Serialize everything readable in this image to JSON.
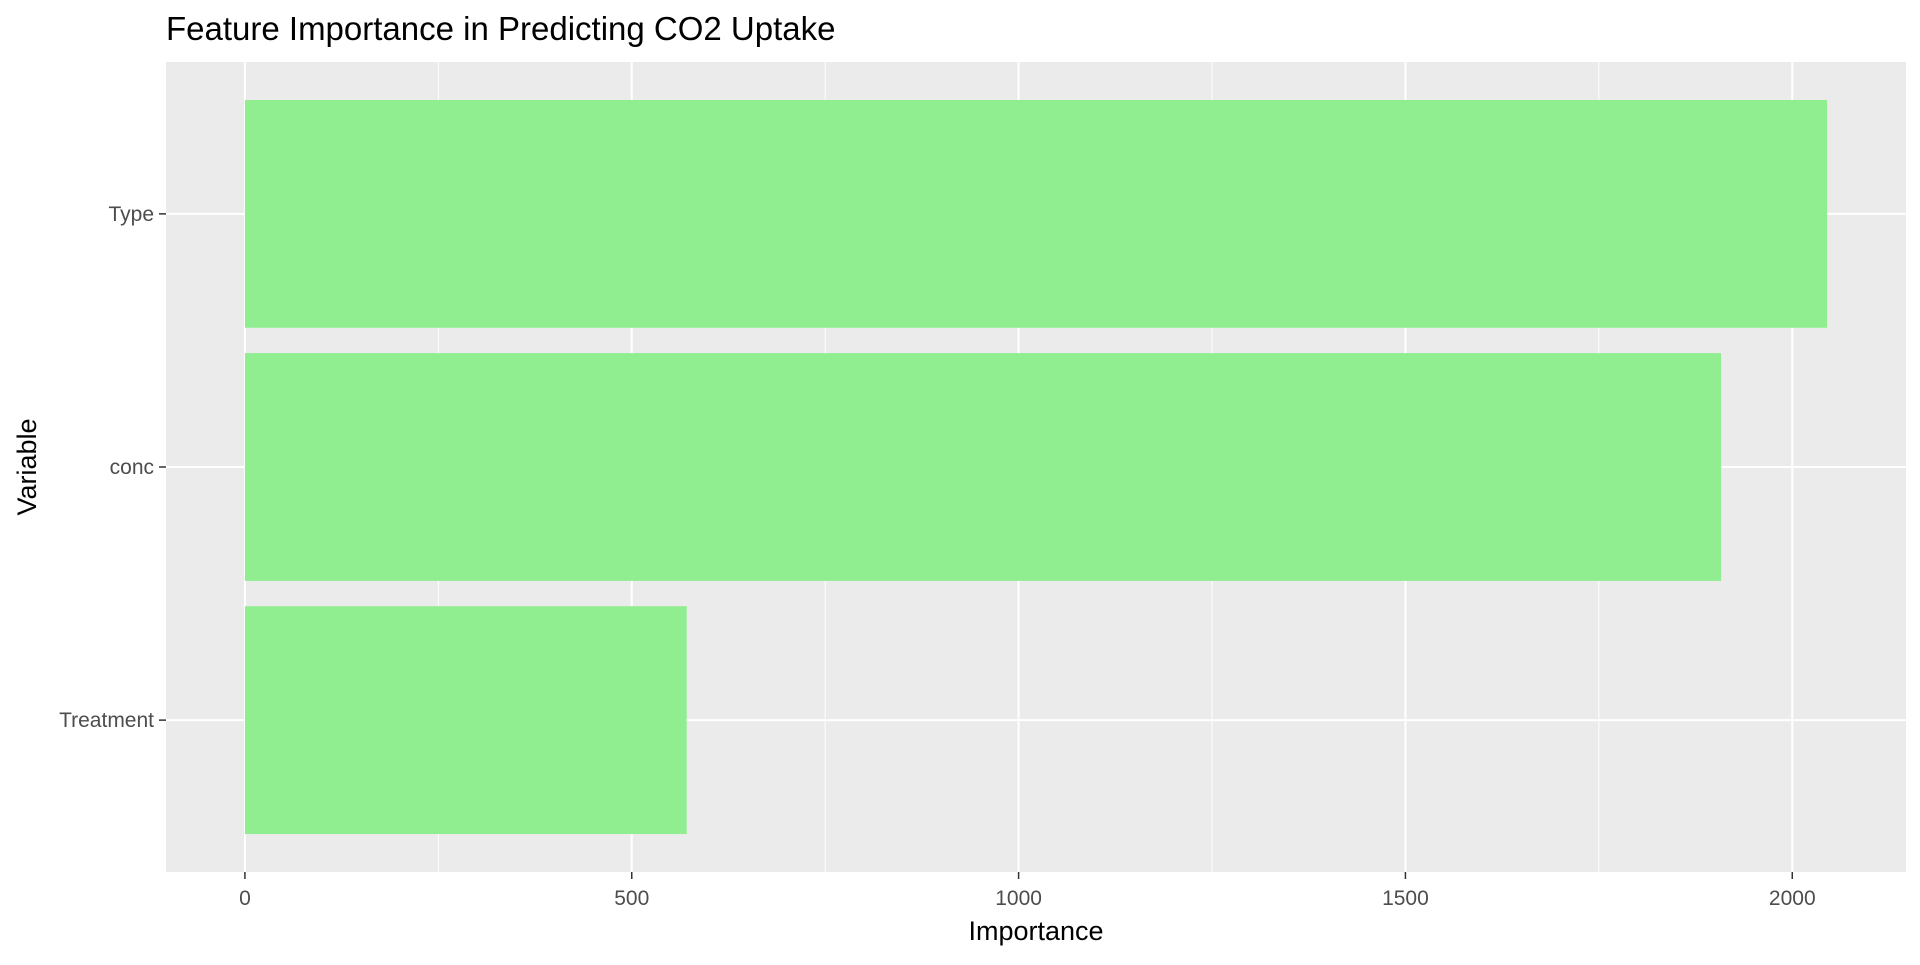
{
  "chart_data": {
    "type": "bar",
    "orientation": "horizontal",
    "title": "Feature Importance in Predicting CO2 Uptake",
    "xlabel": "Importance",
    "ylabel": "Variable",
    "categories": [
      "Type",
      "conc",
      "Treatment"
    ],
    "values": [
      2045,
      1908,
      571
    ],
    "xlim": [
      -102,
      2147
    ],
    "xticks": [
      0,
      500,
      1000,
      1500,
      2000
    ],
    "xtick_labels": [
      "0",
      "500",
      "1000",
      "1500",
      "2000"
    ],
    "grid": true,
    "legend": "none",
    "colors": {
      "bar": "#90EE90",
      "panel_background": "#EBEBEB",
      "grid": "#FFFFFF"
    }
  }
}
